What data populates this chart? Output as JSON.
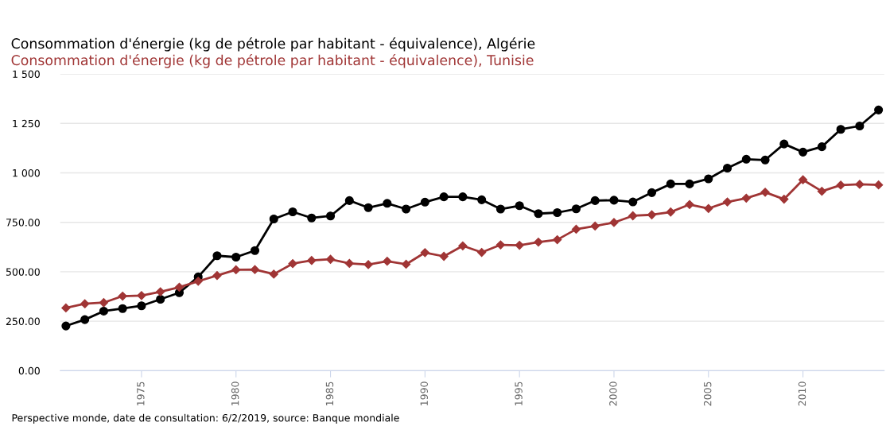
{
  "chart_data": {
    "type": "line",
    "x": [
      1971,
      1972,
      1973,
      1974,
      1975,
      1976,
      1977,
      1978,
      1979,
      1980,
      1981,
      1982,
      1983,
      1984,
      1985,
      1986,
      1987,
      1988,
      1989,
      1990,
      1991,
      1992,
      1993,
      1994,
      1995,
      1996,
      1997,
      1998,
      1999,
      2000,
      2001,
      2002,
      2003,
      2004,
      2005,
      2006,
      2007,
      2008,
      2009,
      2010,
      2011,
      2012,
      2013,
      2014
    ],
    "series": [
      {
        "name": "Consommation d'énergie (kg de pétrole par habitant - équivalence), Algérie",
        "color": "#000000",
        "marker": "circle",
        "values": [
          226,
          258,
          301,
          314,
          328,
          361,
          394,
          474,
          581,
          574,
          607,
          767,
          803,
          772,
          782,
          860,
          824,
          846,
          817,
          852,
          879,
          879,
          864,
          817,
          834,
          794,
          799,
          818,
          860,
          862,
          853,
          900,
          944,
          944,
          970,
          1024,
          1069,
          1065,
          1146,
          1105,
          1132,
          1220,
          1237,
          1318
        ]
      },
      {
        "name": "Consommation d'énergie (kg de pétrole par habitant - équivalence), Tunisie",
        "color": "#a03535",
        "marker": "diamond",
        "values": [
          317,
          338,
          344,
          377,
          380,
          399,
          422,
          452,
          481,
          510,
          511,
          488,
          541,
          557,
          563,
          542,
          536,
          553,
          538,
          597,
          578,
          631,
          598,
          636,
          634,
          650,
          662,
          715,
          731,
          749,
          783,
          788,
          802,
          840,
          820,
          853,
          872,
          902,
          867,
          965,
          907,
          938,
          942,
          939
        ]
      }
    ],
    "xlim": [
      1970.7,
      2014.3
    ],
    "xticks": [
      1975,
      1980,
      1985,
      1990,
      1995,
      2000,
      2005,
      2010
    ],
    "ylim": [
      0,
      1500
    ],
    "yticks": [
      {
        "value": 0,
        "label": "0.00"
      },
      {
        "value": 250,
        "label": "250.00"
      },
      {
        "value": 500,
        "label": "500.00"
      },
      {
        "value": 750,
        "label": "750.00"
      },
      {
        "value": 1000,
        "label": "1 000"
      },
      {
        "value": 1250,
        "label": "1 250"
      },
      {
        "value": 1500,
        "label": "1 500"
      }
    ],
    "grid": "y",
    "legend": "top left",
    "annotations": [
      "Perspective monde, date de consultation: 6/2/2019, source: Banque mondiale"
    ]
  }
}
